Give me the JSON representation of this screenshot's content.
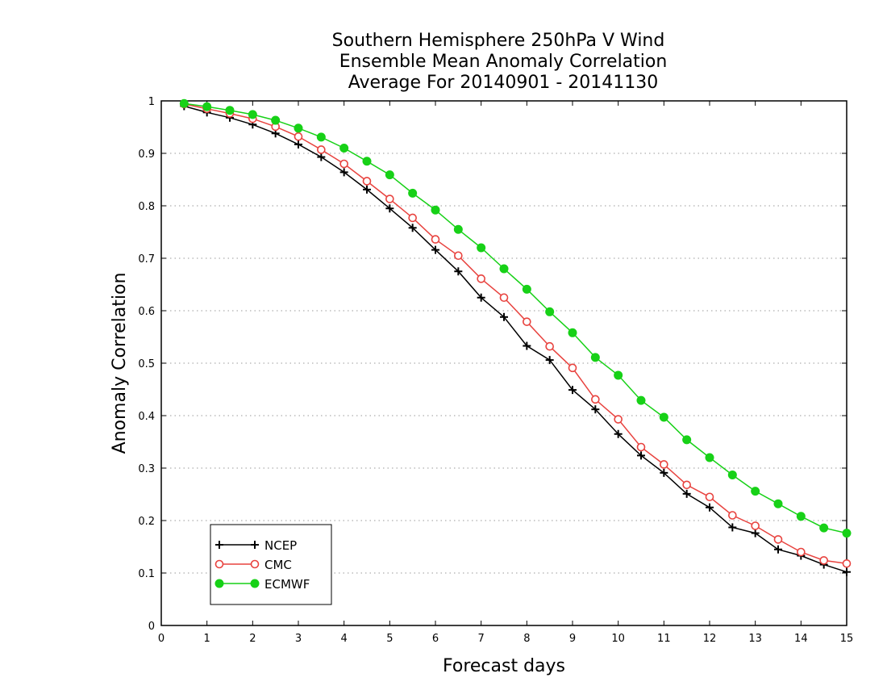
{
  "chart_data": {
    "type": "line",
    "title": [
      "Southern Hemisphere 250hPa V Wind",
      "Ensemble Mean Anomaly Correlation",
      "Average For 20140901 - 20141130"
    ],
    "xlabel": "Forecast days",
    "ylabel": "Anomaly Correlation",
    "xlim": [
      0,
      15
    ],
    "ylim": [
      0,
      1
    ],
    "xticks": [
      "0",
      "1",
      "2",
      "3",
      "4",
      "5",
      "6",
      "7",
      "8",
      "9",
      "10",
      "11",
      "12",
      "13",
      "14",
      "15"
    ],
    "yticks": [
      "0",
      "0.1",
      "0.2",
      "0.3",
      "0.4",
      "0.5",
      "0.6",
      "0.7",
      "0.8",
      "0.9",
      "1"
    ],
    "grid": "horizontal dotted",
    "legend_position": "bottom-left",
    "x": [
      0.5,
      1,
      1.5,
      2,
      2.5,
      3,
      3.5,
      4,
      4.5,
      5,
      5.5,
      6,
      6.5,
      7,
      7.5,
      8,
      8.5,
      9,
      9.5,
      10,
      10.5,
      11,
      11.5,
      12,
      12.5,
      13,
      13.5,
      14,
      14.5,
      15
    ],
    "series": [
      {
        "name": "NCEP",
        "color": "#000000",
        "marker": "plus",
        "values": [
          0.99,
          0.978,
          0.968,
          0.955,
          0.938,
          0.917,
          0.893,
          0.864,
          0.831,
          0.795,
          0.758,
          0.716,
          0.675,
          0.625,
          0.588,
          0.533,
          0.506,
          0.449,
          0.412,
          0.365,
          0.324,
          0.291,
          0.251,
          0.225,
          0.187,
          0.176,
          0.145,
          0.133,
          0.116,
          0.102
        ]
      },
      {
        "name": "CMC",
        "color": "#e8433f",
        "marker": "open-circle",
        "values": [
          0.994,
          0.985,
          0.976,
          0.966,
          0.951,
          0.932,
          0.907,
          0.88,
          0.847,
          0.813,
          0.777,
          0.736,
          0.705,
          0.661,
          0.625,
          0.579,
          0.532,
          0.491,
          0.431,
          0.393,
          0.34,
          0.307,
          0.268,
          0.245,
          0.21,
          0.19,
          0.164,
          0.14,
          0.124,
          0.118
        ]
      },
      {
        "name": "ECMWF",
        "color": "#17d117",
        "marker": "filled-circle",
        "values": [
          0.995,
          0.989,
          0.982,
          0.974,
          0.963,
          0.948,
          0.931,
          0.91,
          0.885,
          0.859,
          0.824,
          0.792,
          0.755,
          0.72,
          0.68,
          0.641,
          0.598,
          0.558,
          0.511,
          0.477,
          0.429,
          0.397,
          0.354,
          0.32,
          0.287,
          0.256,
          0.232,
          0.208,
          0.186,
          0.176
        ]
      }
    ]
  }
}
